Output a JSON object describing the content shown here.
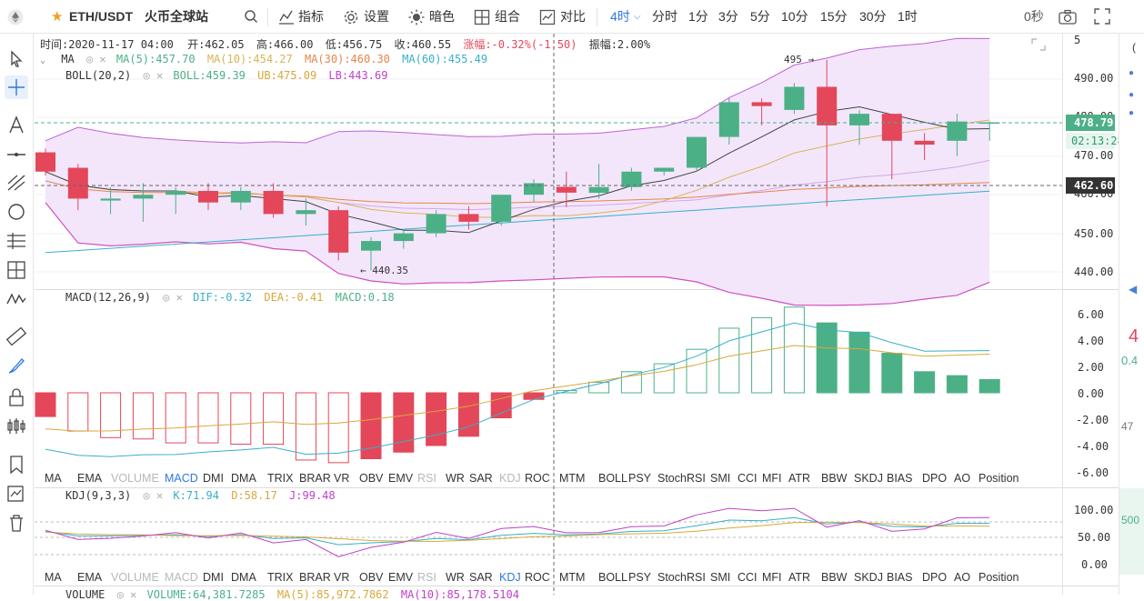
{
  "header": {
    "symbol": "ETH/USDT",
    "exchange": "火币全球站",
    "buttons": [
      {
        "label": "指标"
      },
      {
        "label": "设置"
      },
      {
        "label": "暗色"
      },
      {
        "label": "组合"
      },
      {
        "label": "对比"
      }
    ],
    "intervals": [
      "4时",
      "分时",
      "1分",
      "3分",
      "5分",
      "10分",
      "15分",
      "30分",
      "1时"
    ],
    "active_interval": "4时",
    "countdown": "0秒"
  },
  "ohlc_bar": {
    "time": "时间:2020-11-17 04:00",
    "open": "开:462.05",
    "high": "高:466.00",
    "low": "低:456.75",
    "close": "收:460.55",
    "change": "涨幅:-0.32%(-1.50)",
    "amplitude": "振幅:2.00%"
  },
  "ma_legend": {
    "name": "MA",
    "ma5": "MA(5):457.70",
    "ma10": "MA(10):454.27",
    "ma30": "MA(30):460.30",
    "ma60": "MA(60):455.49"
  },
  "boll_legend": {
    "name": "BOLL(20,2)",
    "boll": "BOLL:459.39",
    "ub": "UB:475.09",
    "lb": "LB:443.69"
  },
  "macd_legend": {
    "name": "MACD(12,26,9)",
    "dif": "DIF:-0.32",
    "dea": "DEA:-0.41",
    "macd": "MACD:0.18"
  },
  "kdj_legend": {
    "name": "KDJ(9,3,3)",
    "k": "K:71.94",
    "d": "D:58.17",
    "j": "J:99.48"
  },
  "volume_legend": {
    "name": "VOLUME",
    "vol": "VOLUME:64,381.7285",
    "ma5": "MA(5):85,972.7862",
    "ma10": "MA(10):85,178.5104"
  },
  "price_axis": {
    "ticks": [
      "5",
      "490.00",
      "480.00",
      "470.00",
      "460.00",
      "450.00",
      "440.00"
    ],
    "current_price": "478.79",
    "countdown": "02:13:28",
    "crosshair_price": "462.60"
  },
  "macd_axis": {
    "ticks": [
      "6.00",
      "4.00",
      "2.00",
      "0.00",
      "-2.00",
      "-4.00",
      "-6.00"
    ]
  },
  "kdj_axis": {
    "ticks": [
      "100.00",
      "50.00",
      "0.00"
    ]
  },
  "annotations": {
    "high": "495 →",
    "low": "← 440.35"
  },
  "indicator_tabs_1": [
    "MA",
    "EMA",
    "VOLUME",
    "MACD",
    "DMI",
    "DMA",
    "TRIX",
    "BRAR",
    "VR",
    "OBV",
    "EMV",
    "RSI",
    "WR",
    "SAR",
    "KDJ",
    "ROC",
    "MTM",
    "BOLL",
    "PSY",
    "StochRSI",
    "SMI",
    "CCI",
    "MFI",
    "ATR",
    "BBW",
    "SKDJ",
    "BIAS",
    "DPO",
    "AO",
    "Position"
  ],
  "indicator_tabs_2": [
    "MA",
    "EMA",
    "VOLUME",
    "MACD",
    "DMI",
    "DMA",
    "TRIX",
    "BRAR",
    "VR",
    "OBV",
    "EMV",
    "RSI",
    "WR",
    "SAR",
    "KDJ",
    "ROC",
    "MTM",
    "BOLL",
    "PSY",
    "StochRSI",
    "SMI",
    "CCI",
    "MFI",
    "ATR",
    "BBW",
    "SKDJ",
    "BIAS",
    "DPO",
    "AO",
    "Position"
  ],
  "active_tab_1": "MACD",
  "active_tab_2": "KDJ",
  "right_strip": {
    "t1": "4",
    "t2": "0.4",
    "t3": "47",
    "t4": "500"
  },
  "colors": {
    "up": "#4cb087",
    "down": "#e4475a",
    "accent": "#2f78e0",
    "boll_fill": "#f3e6fb"
  },
  "chart_data": {
    "type": "candlestick",
    "candles": [
      {
        "o": 471,
        "h": 472,
        "l": 465,
        "c": 466
      },
      {
        "o": 467,
        "h": 468,
        "l": 456,
        "c": 459
      },
      {
        "o": 458.5,
        "h": 462,
        "l": 455,
        "c": 459
      },
      {
        "o": 459,
        "h": 463,
        "l": 453,
        "c": 460
      },
      {
        "o": 460,
        "h": 462,
        "l": 455,
        "c": 461
      },
      {
        "o": 461,
        "h": 463,
        "l": 456,
        "c": 458
      },
      {
        "o": 458,
        "h": 462,
        "l": 456,
        "c": 461
      },
      {
        "o": 461,
        "h": 463,
        "l": 454,
        "c": 455
      },
      {
        "o": 455,
        "h": 459,
        "l": 452,
        "c": 456
      },
      {
        "o": 456,
        "h": 457,
        "l": 443,
        "c": 445
      },
      {
        "o": 445.5,
        "h": 449,
        "l": 440.35,
        "c": 448
      },
      {
        "o": 448,
        "h": 451,
        "l": 446,
        "c": 450
      },
      {
        "o": 450,
        "h": 456,
        "l": 449,
        "c": 455
      },
      {
        "o": 455,
        "h": 457,
        "l": 451,
        "c": 453
      },
      {
        "o": 453,
        "h": 460,
        "l": 452,
        "c": 460
      },
      {
        "o": 460,
        "h": 464,
        "l": 458,
        "c": 463
      },
      {
        "o": 462.05,
        "h": 466,
        "l": 456.75,
        "c": 460.55
      },
      {
        "o": 460.5,
        "h": 468,
        "l": 459,
        "c": 462
      },
      {
        "o": 462,
        "h": 467,
        "l": 461,
        "c": 466
      },
      {
        "o": 466,
        "h": 467,
        "l": 465,
        "c": 467
      },
      {
        "o": 467,
        "h": 475,
        "l": 466,
        "c": 475
      },
      {
        "o": 475,
        "h": 485,
        "l": 473,
        "c": 484
      },
      {
        "o": 484,
        "h": 485,
        "l": 478,
        "c": 483
      },
      {
        "o": 482,
        "h": 489,
        "l": 481,
        "c": 488
      },
      {
        "o": 488,
        "h": 495,
        "l": 457,
        "c": 478
      },
      {
        "o": 478,
        "h": 482,
        "l": 473,
        "c": 481
      },
      {
        "o": 481,
        "h": 481,
        "l": 464,
        "c": 474
      },
      {
        "o": 474,
        "h": 476,
        "l": 469,
        "c": 473
      },
      {
        "o": 474,
        "h": 481,
        "l": 470,
        "c": 479
      },
      {
        "o": 478.79,
        "h": 479,
        "l": 474,
        "c": 478.79
      }
    ],
    "macd_hist": [
      -1.8,
      -2.9,
      -3.4,
      -3.5,
      -3.8,
      -3.8,
      -3.9,
      -3.9,
      -5.1,
      -5.3,
      -5.0,
      -4.5,
      -4.0,
      -3.3,
      -1.9,
      -0.5,
      0.18,
      0.8,
      1.6,
      2.2,
      3.3,
      4.9,
      5.7,
      6.5,
      5.3,
      4.6,
      3.0,
      1.6,
      1.3,
      1.0
    ],
    "ylim_price": [
      437,
      497
    ],
    "ylim_macd": [
      -6.5,
      6.5
    ]
  }
}
